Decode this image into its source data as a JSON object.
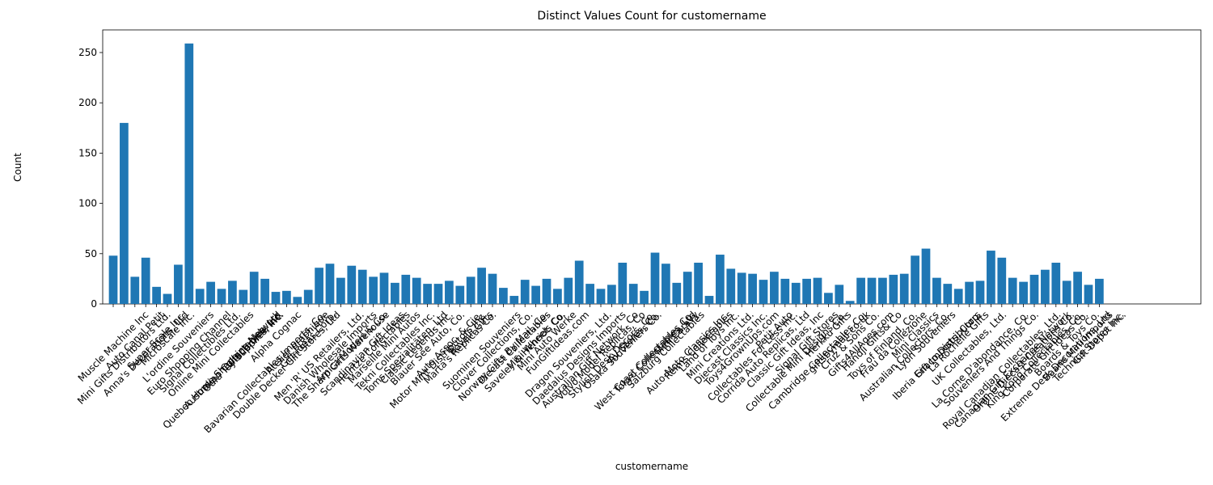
{
  "chart_data": {
    "type": "bar",
    "title": "Distinct Values Count for customername",
    "x_label": "customername",
    "y_label": "Count",
    "color": "#1f77b4",
    "categories": [
      "Muscle Machine Inc",
      "Mini Gifts Distributors Ltd.",
      "Auto Canal Petit",
      "Anna's Decorations, Ltd",
      "Super Scale Inc.",
      "Microscale Inc.",
      "L'ordine Souveniers",
      "Euro Shopping Channel",
      "Signal Collectibles Ltd.",
      "Online Mini Collectables",
      "Quebec Home Shopping Network",
      "Australian Collectables, Ltd",
      "Oulu Toy Supplies, Inc.",
      "Vitachrome Inc.",
      "Bavarian Collectables Imports, Co.",
      "Alpha Cognac",
      "Double Decker Gift Stores, Ltd",
      "Atelier graphique",
      "Gift Ideas Corp.",
      "Men 'R' US Retailers, Ltd.",
      "Danish Wholesale Imports",
      "The Sharp Gifts Warehouse",
      "Amica Models & Co.",
      "Scandinavian Gift Ideas",
      "Heintze Collectables",
      "Marseille Mini Autos",
      "Tekni Collectables Inc.",
      "Toms Spezialitäten, Ltd",
      "Classic Legends Inc.",
      "Blauer See Auto, Co.",
      "Motor Mint Distributors Inc.",
      "Auto Assoc. & Cie.",
      "Marta's Replicas Co.",
      "Rovelli Gifts",
      "Suominen Souveniers",
      "Clover Collections, Co.",
      "Norway Gifts By Mail, Co.",
      "Diecast Collectables",
      "Saveley & Henriot, Co.",
      "Mini Wheels Co.",
      "Mini Auto Werke",
      "FunGiftIdeas.com",
      "Dragon Souveniers, Ltd.",
      "Daedalus Designs Imports",
      "Australian Gift Network, Co",
      "Volvo Model Replicas, Co",
      "Stylish Desk Decors, Co.",
      "Osaka Souveniers Co.",
      "AV Stores, Co.",
      "West Coast Collectables Co.",
      "Tokyo Collectables, Ltd",
      "Salzburg Collectables",
      "Mini Caravy",
      "Auto-Moto Classics Inc.",
      "Reims Collectables",
      "Land of Toys Inc.",
      "Mini Creations Ltd.",
      "Diecast Classics Inc.",
      "Toys4GrownUps.com",
      "Collectables For Less Inc.",
      "Corrida Auto Replicas, Ltd",
      "Petit Auto",
      "Classic Gift Ideas, Inc",
      "Collectable Mini Designs Co.",
      "Signal Gift Stores",
      "Cambridge Collectables Co.",
      "Herkku Gifts",
      "giftsbymail.co.uk",
      "Cruz & Sons Co.",
      "Gifts4AllAges.com",
      "Handji Gifts& Co",
      "Toys of Finland, Co.",
      "Frau da Collezione",
      "Australian Collectors, Co.",
      "Mini Classics",
      "Lyon Souveniers",
      "Iberia Gift Imports, Corp.",
      "Enaco Distributors",
      "La Rochelle Gifts",
      "UK Collectables, Ltd.",
      "La Corne D'abondance, Co.",
      "Souveniers And Things Co.",
      "Royal Canadian Collectables, Ltd.",
      "Canadian Gift Exchange Network",
      "Online Diecast Creations Co.",
      "King Kong Collectables, Co.",
      "Corporate Gift Ideas Co.",
      "Extreme Desk Decorations, Ltd",
      "Boards & Toys Co.",
      "Baane Mini Imports",
      "Technics Stores Inc.",
      "Gift Depot Inc."
    ],
    "values": [
      48,
      180,
      27,
      46,
      17,
      10,
      39,
      259,
      15,
      22,
      15,
      23,
      14,
      32,
      25,
      12,
      13,
      7,
      14,
      36,
      40,
      26,
      38,
      34,
      27,
      31,
      21,
      29,
      26,
      20,
      20,
      23,
      18,
      27,
      36,
      30,
      16,
      8,
      24,
      18,
      25,
      15,
      26,
      43,
      20,
      15,
      19,
      41,
      20,
      13,
      51,
      40,
      21,
      32,
      41,
      8,
      49,
      35,
      31,
      30,
      24,
      32,
      25,
      21,
      25,
      26,
      11,
      19,
      3,
      26,
      26,
      26,
      29,
      30,
      48,
      55,
      26,
      20,
      15,
      22,
      23,
      53,
      46,
      26,
      22,
      29,
      34,
      41,
      23,
      32,
      19,
      25
    ],
    "ylim": [
      0,
      272.5
    ],
    "yticks": [
      0,
      50,
      100,
      150,
      200,
      250
    ]
  }
}
